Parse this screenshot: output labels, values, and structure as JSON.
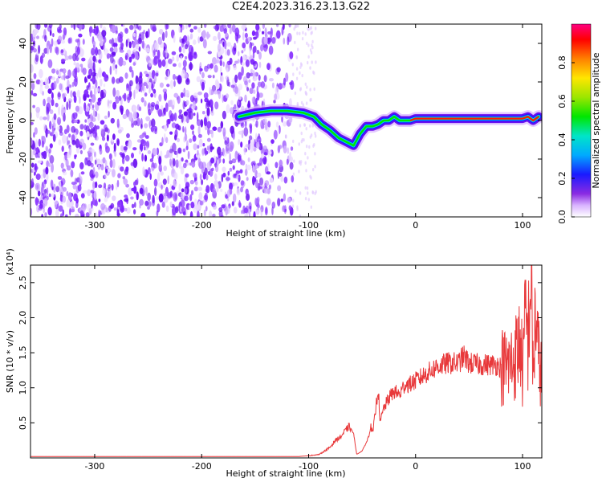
{
  "title": "C2E4.2023.316.23.13.G22",
  "chart_data": [
    {
      "type": "heatmap",
      "xlabel": "Height of straight line (km)",
      "ylabel": "Frequency (Hz)",
      "xlim": [
        -360,
        118
      ],
      "ylim": [
        -50,
        50
      ],
      "xticks": [
        -300,
        -200,
        -100,
        0,
        100
      ],
      "yticks": [
        -40,
        -20,
        0,
        20,
        40
      ],
      "noise_region": {
        "x_from": -360,
        "x_to": -115
      },
      "ridge": {
        "x": [
          -165,
          -150,
          -135,
          -120,
          -105,
          -95,
          -88,
          -80,
          -72,
          -65,
          -58,
          -52,
          -46,
          -40,
          -35,
          -30,
          -25,
          -20,
          -15,
          -10,
          -5,
          0,
          20,
          40,
          60,
          80,
          90,
          100,
          105,
          110,
          115
        ],
        "y": [
          2,
          4,
          5,
          5,
          4,
          2,
          -2,
          -5,
          -9,
          -11,
          -13,
          -7,
          -3,
          -3,
          -2,
          0,
          0,
          2,
          0,
          0,
          0,
          1,
          1,
          1,
          1,
          1,
          1,
          1,
          2,
          0,
          2
        ]
      },
      "colorbar": {
        "label": "Normalized spectral amplitude",
        "range": [
          0.0,
          1.0
        ],
        "ticks": [
          "0.0",
          "0.2",
          "0.4",
          "0.6",
          "0.8"
        ]
      }
    },
    {
      "type": "line",
      "xlabel": "Height of straight line (km)",
      "ylabel": "SNR (10 * v/v)",
      "yscale_label": "(x10⁴)",
      "xlim": [
        -360,
        118
      ],
      "ylim": [
        0,
        2.75
      ],
      "xticks": [
        -300,
        -200,
        -100,
        0,
        100
      ],
      "yticks": [
        0.5,
        1.0,
        1.5,
        2.0,
        2.5
      ],
      "ytick_labels": [
        "0.5",
        "1.0",
        "1.5",
        "2.0",
        "2.5"
      ],
      "color": "#e8383a",
      "series": [
        {
          "x": [
            -360,
            -300,
            -250,
            -200,
            -150,
            -110,
            -100,
            -90,
            -80,
            -75,
            -70,
            -65,
            -62,
            -58,
            -55,
            -50,
            -45,
            -42,
            -40,
            -38,
            -35,
            -33,
            -30,
            -25,
            -20,
            -15,
            -10,
            -5,
            0,
            10,
            20,
            30,
            40,
            45,
            50,
            60,
            70,
            75,
            80,
            85,
            90,
            95,
            98,
            100,
            103,
            105,
            108,
            110,
            112,
            115,
            118
          ],
          "y": [
            0.02,
            0.02,
            0.02,
            0.02,
            0.02,
            0.02,
            0.03,
            0.05,
            0.15,
            0.25,
            0.3,
            0.4,
            0.45,
            0.35,
            0.05,
            0.1,
            0.25,
            0.45,
            0.35,
            0.6,
            1.0,
            0.5,
            0.7,
            0.85,
            0.95,
            0.9,
            1.05,
            1.05,
            1.1,
            1.2,
            1.3,
            1.35,
            1.35,
            1.45,
            1.35,
            1.33,
            1.33,
            1.33,
            1.3,
            1.3,
            1.35,
            1.5,
            1.7,
            1.2,
            2.05,
            1.6,
            2.7,
            1.1,
            2.1,
            1.4,
            1.25
          ]
        }
      ]
    }
  ]
}
